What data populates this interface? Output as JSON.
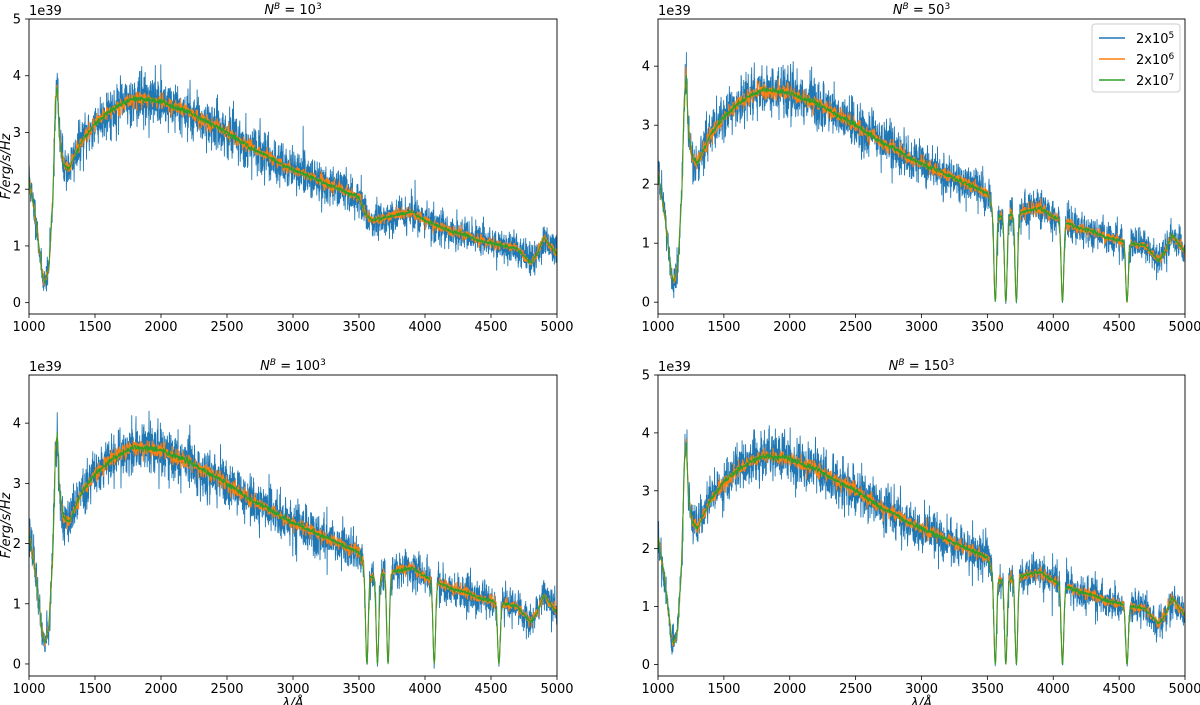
{
  "chart_data": [
    {
      "type": "line",
      "title": "N^B = 10^3",
      "title_base": "N",
      "title_sup": "B",
      "title_eq": " = 10",
      "title_pow": "3",
      "xlabel": "",
      "ylabel": "F/erg/s/Hz",
      "y_offset_label": "1e39",
      "xlim": [
        1000,
        5000
      ],
      "ylim": [
        -0.2,
        5.0
      ],
      "xticks": [
        "1000",
        "1500",
        "2000",
        "2500",
        "3000",
        "3500",
        "4000",
        "4500",
        "5000"
      ],
      "yticks": [
        "0",
        "1",
        "2",
        "3",
        "4",
        "5"
      ],
      "absorption_dips": [],
      "series_names": [
        "2x10^5",
        "2x10^6",
        "2x10^7"
      ]
    },
    {
      "type": "line",
      "title": "N^B = 50^3",
      "title_base": "N",
      "title_sup": "B",
      "title_eq": " = 50",
      "title_pow": "3",
      "xlabel": "",
      "ylabel": "",
      "y_offset_label": "1e39",
      "xlim": [
        1000,
        5000
      ],
      "ylim": [
        -0.2,
        4.8
      ],
      "xticks": [
        "1000",
        "1500",
        "2000",
        "2500",
        "3000",
        "3500",
        "4000",
        "4500",
        "5000"
      ],
      "yticks": [
        "0",
        "1",
        "2",
        "3",
        "4"
      ],
      "absorption_dips": [
        3560,
        3640,
        3720,
        4070,
        4560
      ],
      "series_names": [
        "2x10^5",
        "2x10^6",
        "2x10^7"
      ]
    },
    {
      "type": "line",
      "title": "N^B = 100^3",
      "title_base": "N",
      "title_sup": "B",
      "title_eq": " = 100",
      "title_pow": "3",
      "xlabel": "λ/Å",
      "ylabel": "F/erg/s/Hz",
      "y_offset_label": "1e39",
      "xlim": [
        1000,
        5000
      ],
      "ylim": [
        -0.2,
        4.8
      ],
      "xticks": [
        "1000",
        "1500",
        "2000",
        "2500",
        "3000",
        "3500",
        "4000",
        "4500",
        "5000"
      ],
      "yticks": [
        "0",
        "1",
        "2",
        "3",
        "4"
      ],
      "absorption_dips": [
        3560,
        3640,
        3720,
        4070,
        4560
      ],
      "series_names": [
        "2x10^5",
        "2x10^6",
        "2x10^7"
      ]
    },
    {
      "type": "line",
      "title": "N^B = 150^3",
      "title_base": "N",
      "title_sup": "B",
      "title_eq": " = 150",
      "title_pow": "3",
      "xlabel": "λ/Å",
      "ylabel": "",
      "y_offset_label": "1e39",
      "xlim": [
        1000,
        5000
      ],
      "ylim": [
        -0.2,
        5.0
      ],
      "xticks": [
        "1000",
        "1500",
        "2000",
        "2500",
        "3000",
        "3500",
        "4000",
        "4500",
        "5000"
      ],
      "yticks": [
        "0",
        "1",
        "2",
        "3",
        "4",
        "5"
      ],
      "absorption_dips": [
        3560,
        3640,
        3720,
        4070,
        4560
      ],
      "series_names": [
        "2x10^5",
        "2x10^6",
        "2x10^7"
      ]
    }
  ],
  "continuum": {
    "x": [
      1000,
      1020,
      1050,
      1080,
      1100,
      1120,
      1150,
      1180,
      1200,
      1215,
      1230,
      1260,
      1300,
      1350,
      1400,
      1500,
      1600,
      1700,
      1800,
      1900,
      2000,
      2100,
      2200,
      2300,
      2400,
      2500,
      2600,
      2700,
      2800,
      2900,
      3000,
      3100,
      3200,
      3300,
      3400,
      3500,
      3550,
      3600,
      3700,
      3800,
      3900,
      4000,
      4100,
      4200,
      4300,
      4400,
      4500,
      4600,
      4700,
      4800,
      4850,
      4900,
      5000
    ],
    "y": [
      2.2,
      1.9,
      1.5,
      0.9,
      0.5,
      0.35,
      0.6,
      1.8,
      3.5,
      3.85,
      2.9,
      2.45,
      2.35,
      2.6,
      2.85,
      3.15,
      3.35,
      3.5,
      3.6,
      3.58,
      3.55,
      3.45,
      3.38,
      3.25,
      3.12,
      3.0,
      2.85,
      2.7,
      2.6,
      2.45,
      2.35,
      2.25,
      2.15,
      2.05,
      1.95,
      1.85,
      1.55,
      1.45,
      1.5,
      1.55,
      1.6,
      1.45,
      1.35,
      1.25,
      1.2,
      1.1,
      1.05,
      1.0,
      0.95,
      0.7,
      0.85,
      1.15,
      0.85
    ]
  },
  "legend": {
    "entries": [
      {
        "base": "2x10",
        "pow": "5",
        "color": "#1f77b4"
      },
      {
        "base": "2x10",
        "pow": "6",
        "color": "#ff7f0e"
      },
      {
        "base": "2x10",
        "pow": "7",
        "color": "#2ca02c"
      }
    ]
  },
  "colors": {
    "series_1": "#1f77b4",
    "series_2": "#ff7f0e",
    "series_3": "#2ca02c",
    "axes": "#000000"
  }
}
